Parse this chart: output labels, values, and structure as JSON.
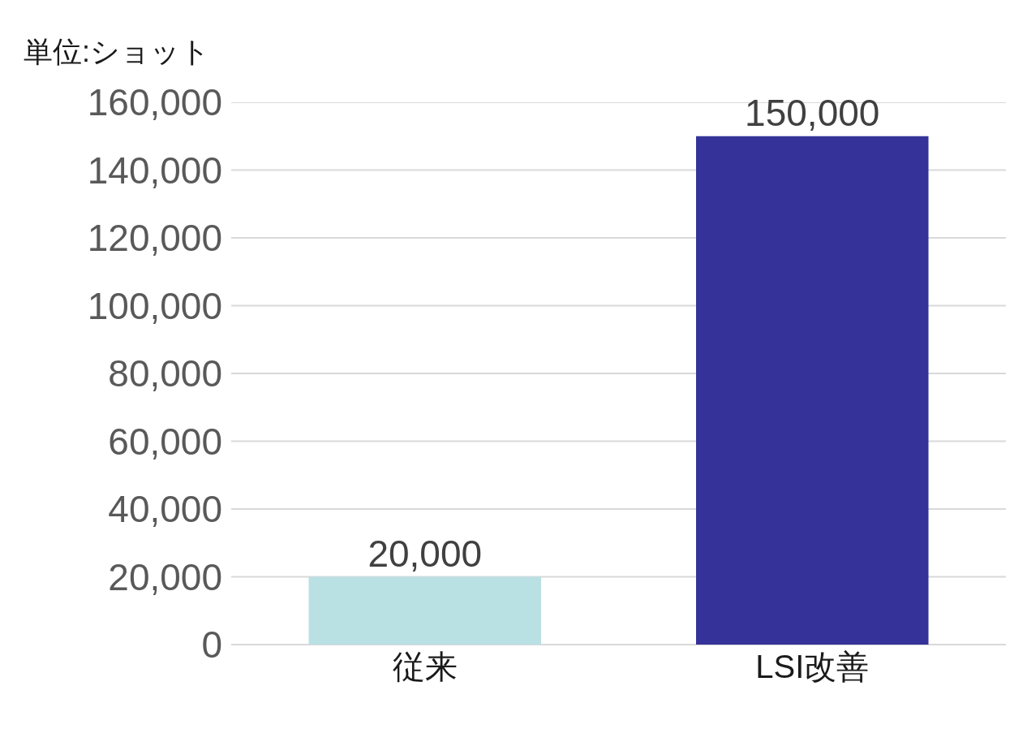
{
  "chart_data": {
    "type": "bar",
    "ylabel": "単位:ショット",
    "categories": [
      "従来",
      "LSI改善"
    ],
    "values": [
      20000,
      150000
    ],
    "value_labels": [
      "20,000",
      "150,000"
    ],
    "colors": [
      "#b9e0e3",
      "#353399"
    ],
    "ylim": [
      0,
      160000
    ],
    "yticks": [
      {
        "value": 0,
        "label": "0"
      },
      {
        "value": 20000,
        "label": "20,000"
      },
      {
        "value": 40000,
        "label": "40,000"
      },
      {
        "value": 60000,
        "label": "60,000"
      },
      {
        "value": 80000,
        "label": "80,000"
      },
      {
        "value": 100000,
        "label": "100,000"
      },
      {
        "value": 120000,
        "label": "120,000"
      },
      {
        "value": 140000,
        "label": "140,000"
      },
      {
        "value": 160000,
        "label": "160,000"
      }
    ],
    "grid": "y"
  }
}
